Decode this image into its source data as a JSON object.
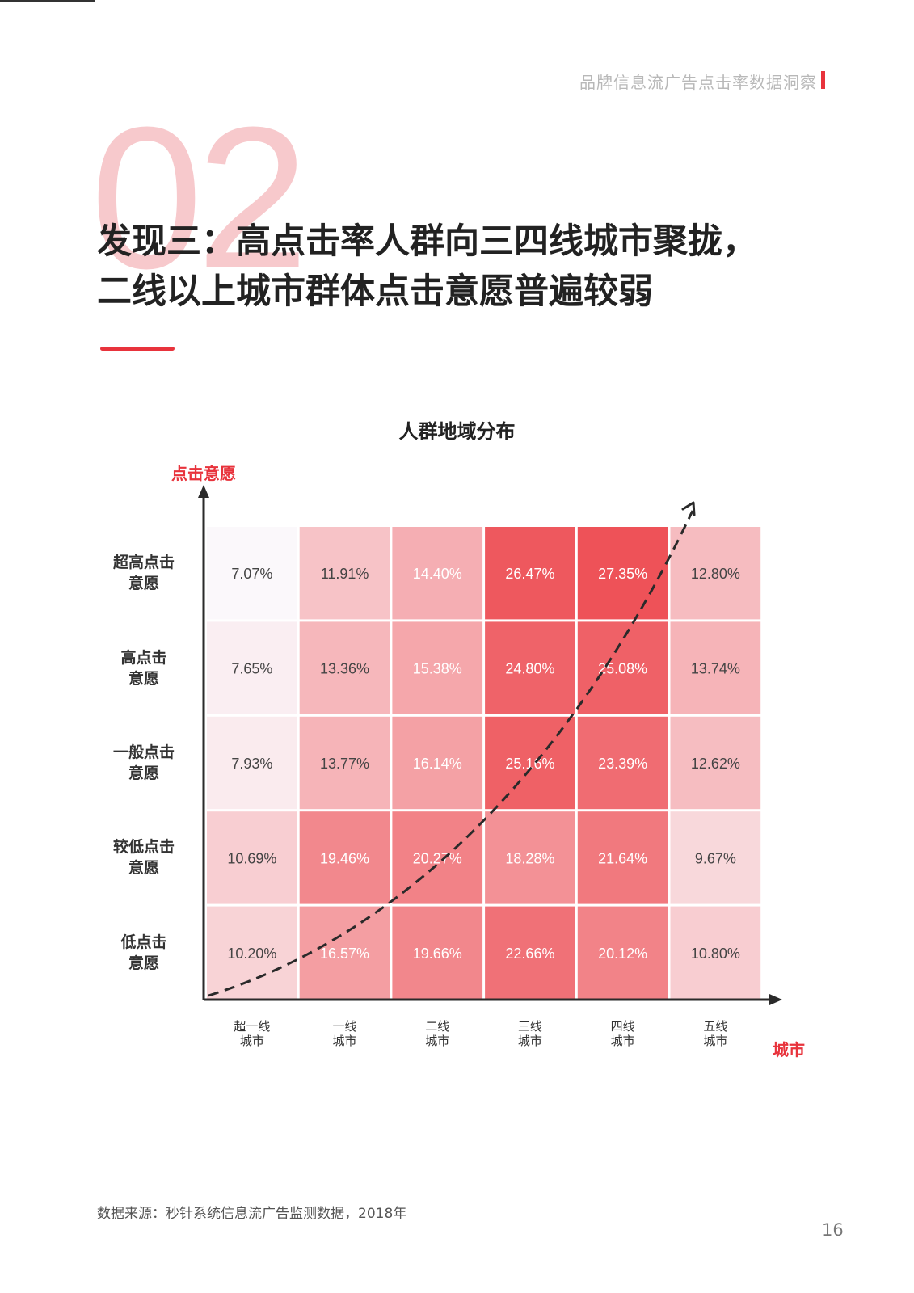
{
  "header": {
    "report_title": "品牌信息流广告点击率数据洞察"
  },
  "section_number": "02",
  "headline": {
    "line1": "发现三：高点击率人群向三四线城市聚拢，",
    "line2": "二线以上城市群体点击意愿普遍较弱"
  },
  "footer": {
    "source": "数据来源：秒针系统信息流广告监测数据，2018年",
    "page_number": "16"
  },
  "colors": {
    "accent": "#e8333c",
    "cell_low": "#fbf8fb",
    "cell_high": "#ee5258"
  },
  "chart_data": {
    "type": "heatmap",
    "title": "人群地域分布",
    "ylabel": "点击意愿",
    "xlabel": "城市",
    "rows": [
      {
        "label_top": "超高点击",
        "label_bottom": "意愿"
      },
      {
        "label_top": "高点击",
        "label_bottom": "意愿"
      },
      {
        "label_top": "一般点击",
        "label_bottom": "意愿"
      },
      {
        "label_top": "较低点击",
        "label_bottom": "意愿"
      },
      {
        "label_top": "低点击",
        "label_bottom": "意愿"
      }
    ],
    "columns": [
      {
        "label_top": "超一线",
        "label_bottom": "城市"
      },
      {
        "label_top": "一线",
        "label_bottom": "城市"
      },
      {
        "label_top": "二线",
        "label_bottom": "城市"
      },
      {
        "label_top": "三线",
        "label_bottom": "城市"
      },
      {
        "label_top": "四线",
        "label_bottom": "城市"
      },
      {
        "label_top": "五线",
        "label_bottom": "城市"
      }
    ],
    "values": [
      [
        7.07,
        11.91,
        14.4,
        26.47,
        27.35,
        12.8
      ],
      [
        7.65,
        13.36,
        15.38,
        24.8,
        25.08,
        13.74
      ],
      [
        7.93,
        13.77,
        16.14,
        25.16,
        23.39,
        12.62
      ],
      [
        10.69,
        19.46,
        20.27,
        18.28,
        21.64,
        9.67
      ],
      [
        10.2,
        16.57,
        19.66,
        22.66,
        20.12,
        10.8
      ]
    ],
    "value_labels": [
      [
        "7.07%",
        "11.91%",
        "14.40%",
        "26.47%",
        "27.35%",
        "12.80%"
      ],
      [
        "7.65%",
        "13.36%",
        "15.38%",
        "24.80%",
        "25.08%",
        "13.74%"
      ],
      [
        "7.93%",
        "13.77%",
        "16.14%",
        "25.16%",
        "23.39%",
        "12.62%"
      ],
      [
        "10.69%",
        "19.46%",
        "20.27%",
        "18.28%",
        "21.64%",
        "9.67%"
      ],
      [
        "10.20%",
        "16.57%",
        "19.66%",
        "22.66%",
        "20.12%",
        "10.80%"
      ]
    ],
    "trend_arrow": "dashed curve rising from 超一线/低点击 to 四线-五线/超高点击"
  }
}
